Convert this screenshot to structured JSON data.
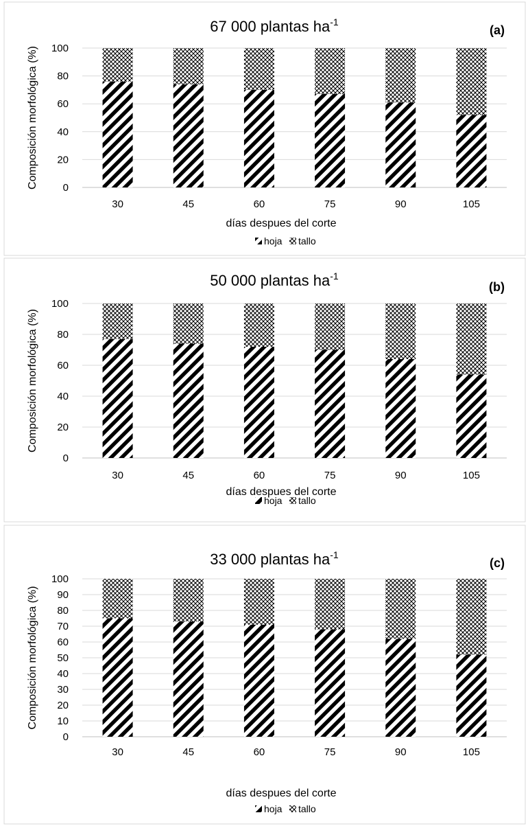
{
  "chart_data": [
    {
      "type": "bar",
      "stacked": true,
      "title": "67 000 plantas ha",
      "title_superscript": "-1",
      "panel_label": "(a)",
      "xlabel": "días despues del corte",
      "ylabel": "Composición morfológica (%)",
      "categories": [
        "30",
        "45",
        "60",
        "75",
        "90",
        "105"
      ],
      "ylim": [
        0,
        100
      ],
      "yticks": [
        0,
        20,
        40,
        60,
        80,
        100
      ],
      "grid": true,
      "legend_position": "bottom",
      "series": [
        {
          "name": "hoja",
          "values": [
            76,
            74,
            70,
            67,
            61,
            52
          ],
          "pattern": "diagonal-stripes"
        },
        {
          "name": "tallo",
          "values": [
            24,
            26,
            30,
            33,
            39,
            48
          ],
          "pattern": "crosshatch-dots"
        }
      ]
    },
    {
      "type": "bar",
      "stacked": true,
      "title": "50 000 plantas ha",
      "title_superscript": "-1",
      "panel_label": "(b)",
      "xlabel": "días despues del corte",
      "ylabel": "Composición morfológica (%)",
      "categories": [
        "30",
        "45",
        "60",
        "75",
        "90",
        "105"
      ],
      "ylim": [
        0,
        100
      ],
      "yticks": [
        0,
        20,
        40,
        60,
        80,
        100
      ],
      "grid": true,
      "legend_position": "bottom",
      "series": [
        {
          "name": "hoja",
          "values": [
            77,
            74,
            72,
            70,
            64,
            54
          ],
          "pattern": "diagonal-stripes"
        },
        {
          "name": "tallo",
          "values": [
            23,
            26,
            28,
            30,
            36,
            46
          ],
          "pattern": "crosshatch-dots"
        }
      ]
    },
    {
      "type": "bar",
      "stacked": true,
      "title": "33 000 plantas ha",
      "title_superscript": "-1",
      "panel_label": "(c)",
      "xlabel": "días despues del corte",
      "ylabel": "Composición morfológica (%)",
      "categories": [
        "30",
        "45",
        "60",
        "75",
        "90",
        "105"
      ],
      "ylim": [
        0,
        100
      ],
      "yticks": [
        0,
        10,
        20,
        30,
        40,
        50,
        60,
        70,
        80,
        90,
        100
      ],
      "grid": true,
      "legend_position": "bottom",
      "series": [
        {
          "name": "hoja",
          "values": [
            75,
            73,
            71,
            68,
            62,
            52
          ],
          "pattern": "diagonal-stripes"
        },
        {
          "name": "tallo",
          "values": [
            25,
            27,
            29,
            32,
            38,
            48
          ],
          "pattern": "crosshatch-dots"
        }
      ]
    }
  ]
}
